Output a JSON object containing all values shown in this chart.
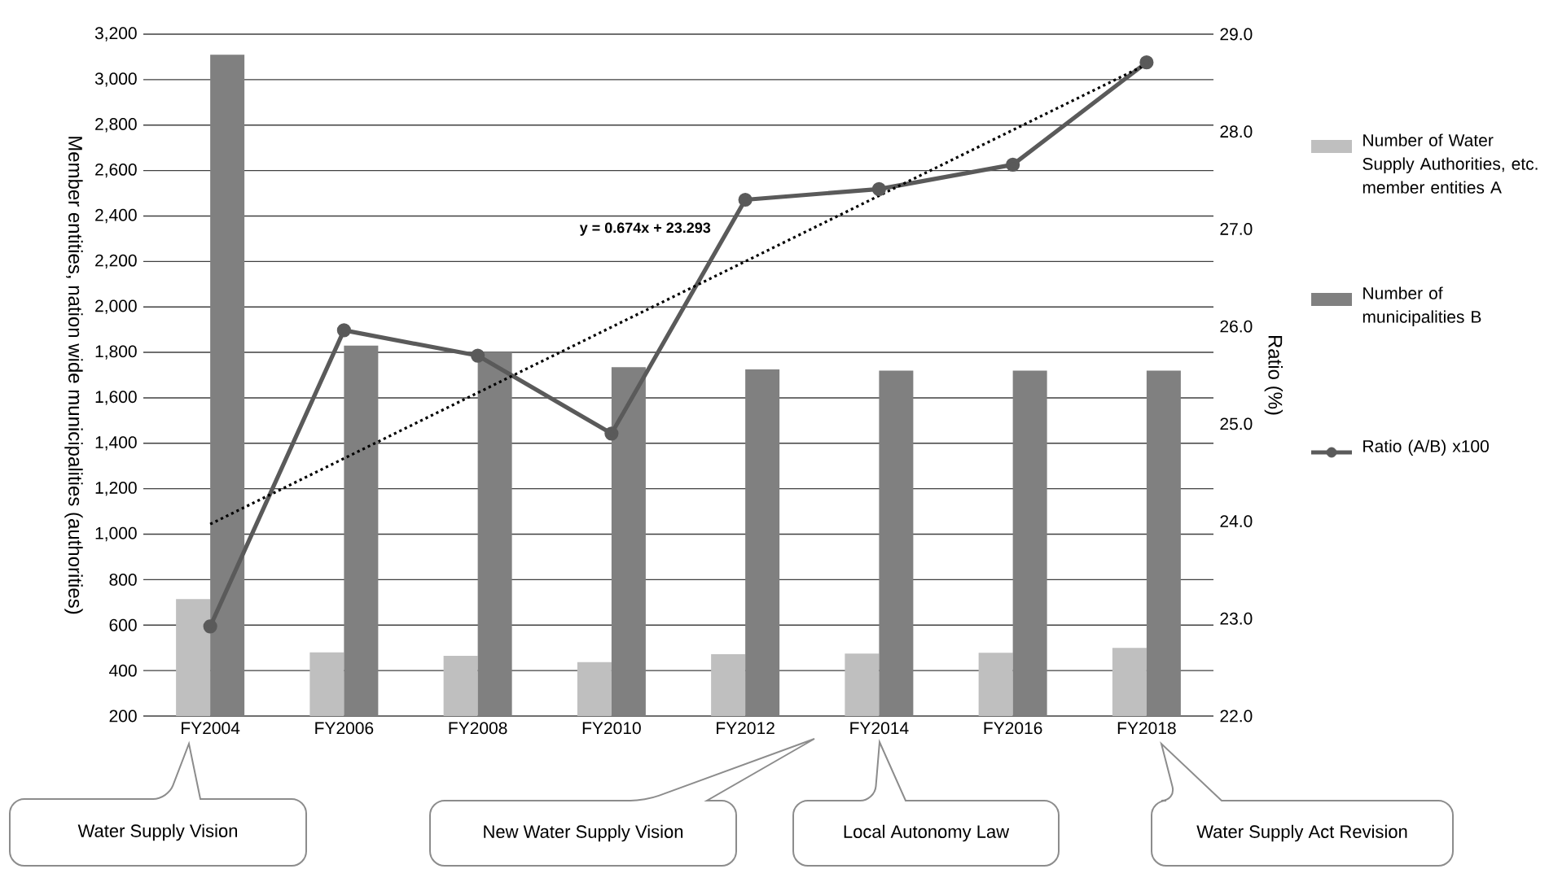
{
  "chart_data": {
    "type": "bar",
    "ylabel": "Member entities, nation wide municipalities (authorities)",
    "y2label": "Ratio (%)",
    "categories": [
      "FY2004",
      "FY2006",
      "FY2008",
      "FY2010",
      "FY2012",
      "FY2014",
      "FY2016",
      "FY2018"
    ],
    "series": [
      {
        "name": "Number of Water Supply Authorities, etc. member entities A",
        "color": "#bfbfbf",
        "values": [
          715,
          480,
          465,
          437,
          472,
          475,
          478,
          500
        ]
      },
      {
        "name": "Number of municipalities B",
        "color": "#808080",
        "values": [
          3110,
          1830,
          1800,
          1735,
          1725,
          1720,
          1720,
          1720
        ]
      },
      {
        "name": "Ratio (A/B) x100",
        "type": "line",
        "axis": "y2",
        "color": "#5a5a5a",
        "values": [
          22.92,
          25.96,
          25.7,
          24.9,
          27.3,
          27.41,
          27.66,
          28.71
        ]
      },
      {
        "type": "line",
        "axis": "y2",
        "color": "#000000",
        "line_style": "dotted",
        "marker": "none",
        "x": [
          "FY2004",
          "FY2018"
        ],
        "values": [
          23.97,
          28.69
        ]
      }
    ],
    "ylim": [
      200,
      3200
    ],
    "yticks": [
      200,
      400,
      600,
      800,
      {
        "value": 1000,
        "label": "1,000"
      },
      {
        "value": 1200,
        "label": "1,200"
      },
      {
        "value": 1400,
        "label": "1,400"
      },
      {
        "value": 1600,
        "label": "1,600"
      },
      {
        "value": 1800,
        "label": "1,800"
      },
      {
        "value": 2000,
        "label": "2,000"
      },
      {
        "value": 2200,
        "label": "2,200"
      },
      {
        "value": 2400,
        "label": "2,400"
      },
      {
        "value": 2600,
        "label": "2,600"
      },
      {
        "value": 2800,
        "label": "2,800"
      },
      {
        "value": 3000,
        "label": "3,000"
      },
      {
        "value": 3200,
        "label": "3,200"
      }
    ],
    "y2lim": [
      22,
      29
    ],
    "y2ticks": [
      {
        "value": 22,
        "label": "22.0"
      },
      {
        "value": 23,
        "label": "23.0"
      },
      {
        "value": 24,
        "label": "24.0"
      },
      {
        "value": 25,
        "label": "25.0"
      },
      {
        "value": 26,
        "label": "26.0"
      },
      {
        "value": 27,
        "label": "27.0"
      },
      {
        "value": 28,
        "label": "28.0"
      },
      {
        "value": 29,
        "label": "29.0"
      }
    ],
    "grid": "y",
    "legend": "right",
    "marker": "circle",
    "annotations": [
      "y = 0.674x + 23.293",
      "Water Supply Vision",
      "New Water Supply Vision",
      "Local Autonomy Law",
      "Water Supply Act Revision"
    ]
  }
}
